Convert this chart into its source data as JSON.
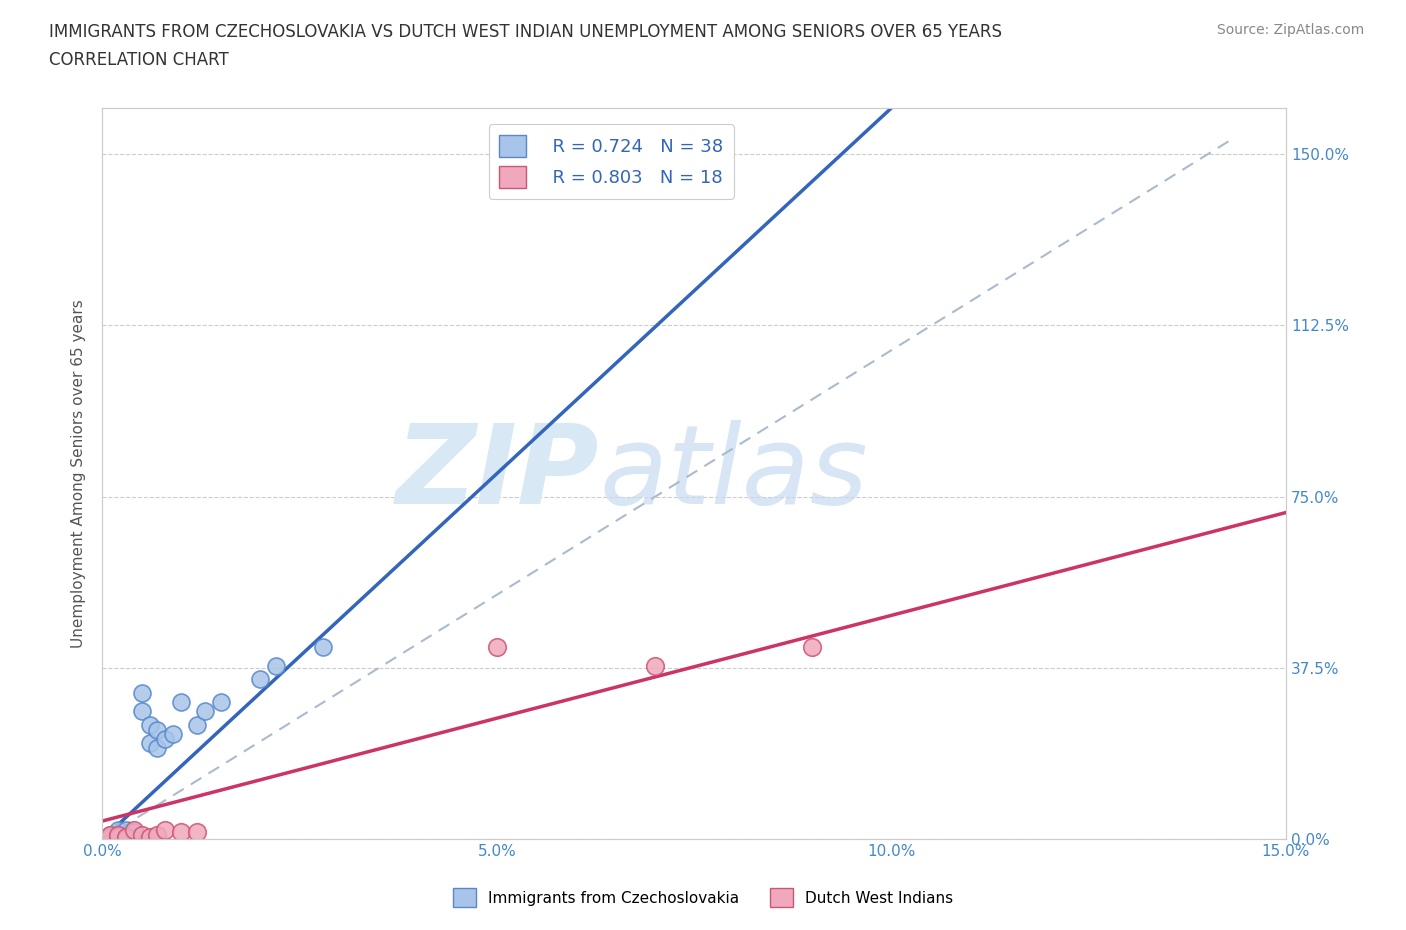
{
  "title_line1": "IMMIGRANTS FROM CZECHOSLOVAKIA VS DUTCH WEST INDIAN UNEMPLOYMENT AMONG SENIORS OVER 65 YEARS",
  "title_line2": "CORRELATION CHART",
  "source_text": "Source: ZipAtlas.com",
  "ylabel": "Unemployment Among Seniors over 65 years",
  "xlim": [
    0.0,
    0.15
  ],
  "ylim": [
    0.0,
    1.6
  ],
  "xticks": [
    0.0,
    0.05,
    0.1,
    0.15
  ],
  "xtick_labels": [
    "0.0%",
    "5.0%",
    "10.0%",
    "15.0%"
  ],
  "yticks": [
    0.0,
    0.375,
    0.75,
    1.125,
    1.5
  ],
  "ytick_labels": [
    "0.0%",
    "37.5%",
    "75.0%",
    "112.5%",
    "150.0%"
  ],
  "blue_R": 0.724,
  "blue_N": 38,
  "pink_R": 0.803,
  "pink_N": 18,
  "blue_color": "#a8c4e8",
  "blue_edge": "#5588cc",
  "blue_line_color": "#3366bb",
  "pink_color": "#f0a8bc",
  "pink_edge": "#cc5577",
  "pink_line_color": "#cc3366",
  "dashed_line_color": "#aabbcc",
  "watermark_color": "#d8e8f4",
  "background_color": "#ffffff",
  "legend_label_blue": "Immigrants from Czechoslovakia",
  "legend_label_pink": "Dutch West Indians",
  "blue_scatter_x": [
    0.0003,
    0.0005,
    0.0007,
    0.0008,
    0.001,
    0.001,
    0.0012,
    0.0013,
    0.0014,
    0.0015,
    0.0016,
    0.0017,
    0.0018,
    0.002,
    0.002,
    0.0022,
    0.0023,
    0.0025,
    0.003,
    0.003,
    0.003,
    0.004,
    0.004,
    0.005,
    0.005,
    0.006,
    0.006,
    0.007,
    0.007,
    0.008,
    0.009,
    0.01,
    0.012,
    0.013,
    0.015,
    0.02,
    0.022,
    0.028
  ],
  "blue_scatter_y": [
    0.0,
    0.0,
    0.005,
    0.003,
    0.0,
    0.01,
    0.005,
    0.0,
    0.008,
    0.003,
    0.01,
    0.005,
    0.0,
    0.005,
    0.02,
    0.01,
    0.0,
    0.005,
    0.0,
    0.01,
    0.02,
    0.005,
    0.015,
    0.28,
    0.32,
    0.21,
    0.25,
    0.2,
    0.24,
    0.22,
    0.23,
    0.3,
    0.25,
    0.28,
    0.3,
    0.35,
    0.38,
    0.42
  ],
  "pink_scatter_x": [
    0.0003,
    0.0005,
    0.001,
    0.001,
    0.002,
    0.002,
    0.003,
    0.003,
    0.004,
    0.005,
    0.006,
    0.007,
    0.008,
    0.01,
    0.012,
    0.05,
    0.07,
    0.09
  ],
  "pink_scatter_y": [
    0.0,
    0.0,
    0.005,
    0.01,
    0.005,
    0.01,
    0.0,
    0.005,
    0.02,
    0.01,
    0.005,
    0.01,
    0.02,
    0.015,
    0.015,
    0.42,
    0.38,
    0.42
  ],
  "blue_trend_x0": 0.0,
  "blue_trend_y0": 0.0,
  "blue_trend_slope": 16.0,
  "pink_trend_x0": 0.0,
  "pink_trend_y0": 0.04,
  "pink_trend_slope": 4.5,
  "dashed_trend_slope": 10.7
}
